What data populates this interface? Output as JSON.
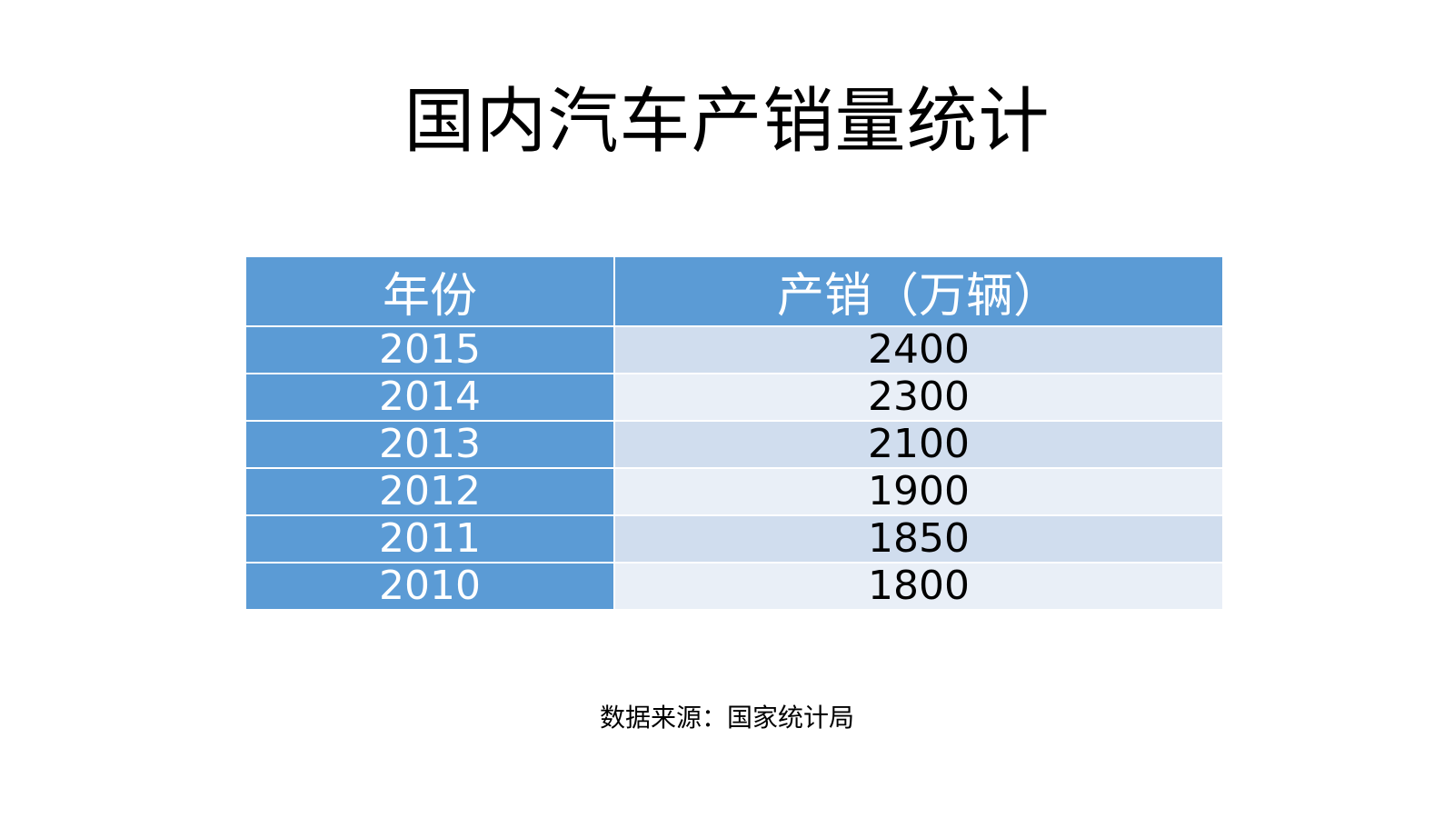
{
  "title": "国内汽车产销量统计",
  "source": "数据来源：国家统计局",
  "colors": {
    "header_bg": "#5b9bd5",
    "year_bg": "#5b9bd5",
    "row_odd_bg": "#d0ddee",
    "row_even_bg": "#e9eff7"
  },
  "chart_data": {
    "type": "table",
    "title": "国内汽车产销量统计",
    "columns": [
      "年份",
      "产销（万辆）"
    ],
    "rows": [
      [
        "2015",
        "2400"
      ],
      [
        "2014",
        "2300"
      ],
      [
        "2013",
        "2100"
      ],
      [
        "2012",
        "1900"
      ],
      [
        "2011",
        "1850"
      ],
      [
        "2010",
        "1800"
      ]
    ]
  }
}
